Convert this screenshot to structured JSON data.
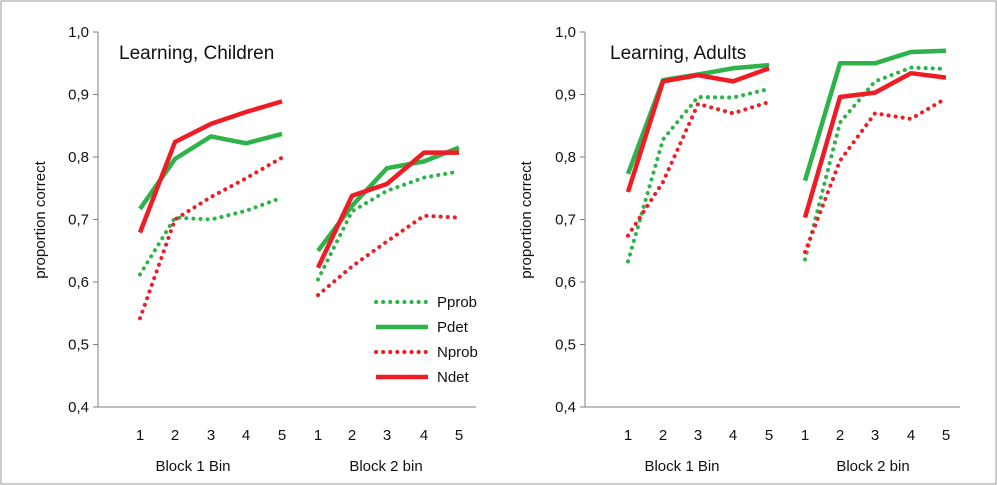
{
  "colors": {
    "green": "#2db34a",
    "red": "#ee1c25",
    "axis": "#7f7f7f",
    "border": "#999999"
  },
  "chart_data": [
    {
      "type": "line",
      "title": "Learning, Children",
      "ylabel": "proportion correct",
      "ylim": [
        0.4,
        1.0
      ],
      "yticks": [
        "0,4",
        "0,5",
        "0,6",
        "0,7",
        "0,8",
        "0,9",
        "1,0"
      ],
      "groups": [
        {
          "label": "Block 1 Bin",
          "x": [
            "1",
            "2",
            "3",
            "4",
            "5"
          ]
        },
        {
          "label": "Block 2 bin",
          "x": [
            "1",
            "2",
            "3",
            "4",
            "5"
          ]
        }
      ],
      "legend": {
        "position": "bottom-right"
      },
      "series": [
        {
          "name": "Pprob",
          "color": "#2db34a",
          "style": "dotted",
          "block1": [
            0.612,
            0.703,
            0.7,
            0.714,
            0.735
          ],
          "block2": [
            0.604,
            0.713,
            0.746,
            0.767,
            0.777
          ]
        },
        {
          "name": "Pdet",
          "color": "#2db34a",
          "style": "solid",
          "block1": [
            0.717,
            0.797,
            0.833,
            0.822,
            0.837
          ],
          "block2": [
            0.65,
            0.722,
            0.782,
            0.793,
            0.815
          ]
        },
        {
          "name": "Nprob",
          "color": "#ee1c25",
          "style": "dotted",
          "block1": [
            0.542,
            0.7,
            0.736,
            0.766,
            0.799
          ],
          "block2": [
            0.579,
            0.625,
            0.665,
            0.706,
            0.703
          ]
        },
        {
          "name": "Ndet",
          "color": "#ee1c25",
          "style": "solid",
          "block1": [
            0.679,
            0.824,
            0.853,
            0.872,
            0.889
          ],
          "block2": [
            0.623,
            0.738,
            0.757,
            0.807,
            0.807
          ]
        }
      ]
    },
    {
      "type": "line",
      "title": "Learning, Adults",
      "ylabel": "proportion correct",
      "ylim": [
        0.4,
        1.0
      ],
      "yticks": [
        "0,4",
        "0,5",
        "0,6",
        "0,7",
        "0,8",
        "0,9",
        "1,0"
      ],
      "groups": [
        {
          "label": "Block 1 Bin",
          "x": [
            "1",
            "2",
            "3",
            "4",
            "5"
          ]
        },
        {
          "label": "Block 2 bin",
          "x": [
            "1",
            "2",
            "3",
            "4",
            "5"
          ]
        }
      ],
      "series": [
        {
          "name": "Pprob",
          "color": "#2db34a",
          "style": "dotted",
          "block1": [
            0.633,
            0.828,
            0.896,
            0.895,
            0.909
          ],
          "block2": [
            0.636,
            0.855,
            0.921,
            0.943,
            0.941
          ]
        },
        {
          "name": "Pdet",
          "color": "#2db34a",
          "style": "solid",
          "block1": [
            0.773,
            0.923,
            0.932,
            0.942,
            0.947
          ],
          "block2": [
            0.762,
            0.95,
            0.95,
            0.968,
            0.97
          ]
        },
        {
          "name": "Nprob",
          "color": "#ee1c25",
          "style": "dotted",
          "block1": [
            0.674,
            0.76,
            0.885,
            0.87,
            0.888
          ],
          "block2": [
            0.648,
            0.794,
            0.87,
            0.861,
            0.894
          ]
        },
        {
          "name": "Ndet",
          "color": "#ee1c25",
          "style": "solid",
          "block1": [
            0.744,
            0.921,
            0.931,
            0.921,
            0.942
          ],
          "block2": [
            0.703,
            0.896,
            0.903,
            0.934,
            0.927
          ]
        }
      ]
    }
  ]
}
